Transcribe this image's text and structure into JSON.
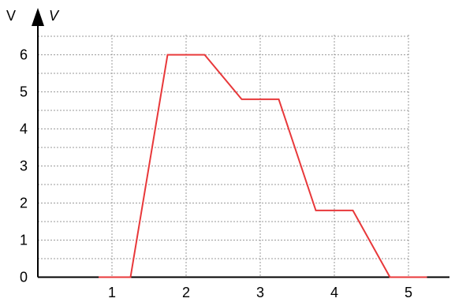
{
  "chart_data": {
    "type": "line",
    "title": "",
    "xlabel": "",
    "ylabel_unit": "V",
    "ylabel_symbol": "V",
    "xlim": [
      0,
      5.6
    ],
    "ylim": [
      0,
      7
    ],
    "grid": true,
    "x_ticks": [
      1,
      2,
      3,
      4,
      5
    ],
    "y_ticks": [
      0,
      1,
      2,
      3,
      4,
      5,
      6
    ],
    "series": [
      {
        "color": "#e8383a",
        "points": [
          [
            0.82,
            0
          ],
          [
            1.25,
            0
          ],
          [
            1.75,
            6
          ],
          [
            2.25,
            6
          ],
          [
            2.75,
            4.8
          ],
          [
            3.25,
            4.8
          ],
          [
            3.75,
            1.8
          ],
          [
            4.25,
            1.8
          ],
          [
            4.75,
            0
          ],
          [
            5.25,
            0
          ]
        ]
      }
    ]
  }
}
